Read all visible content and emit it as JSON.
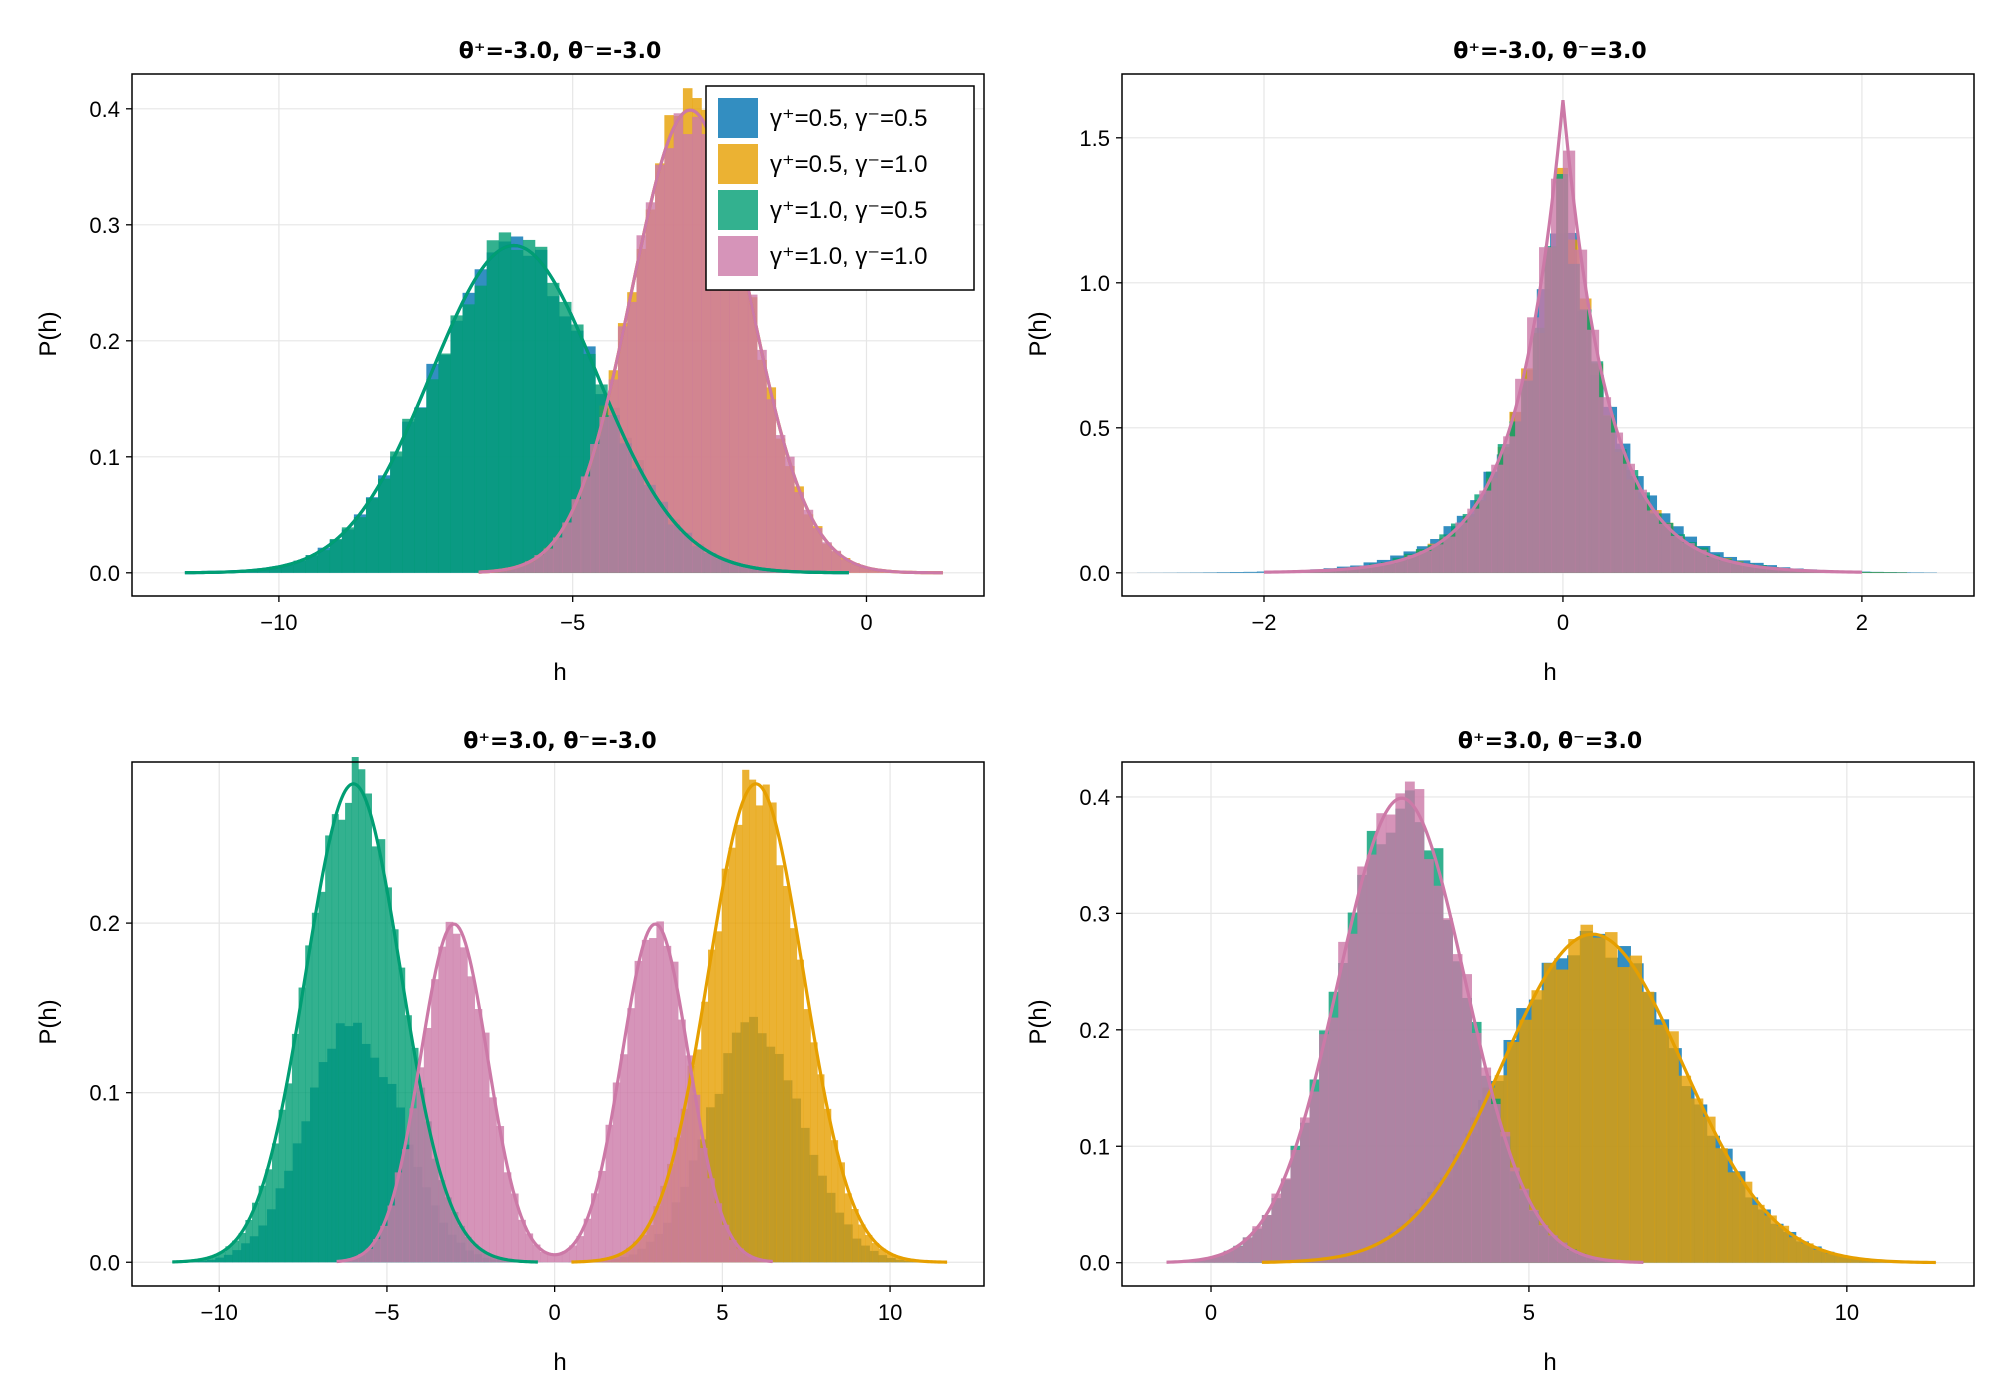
{
  "colors": {
    "gamma_05_05": "#0072B2",
    "gamma_05_10": "#E69F00",
    "gamma_10_05": "#009E73",
    "gamma_10_10": "#CC79A7",
    "grid": "#e6e6e6",
    "frame": "#000000"
  },
  "legend": {
    "placement": "top-right of first panel",
    "entries": [
      {
        "label": "γ⁺=0.5, γ⁻=0.5",
        "color_key": "gamma_05_05"
      },
      {
        "label": "γ⁺=0.5, γ⁻=1.0",
        "color_key": "gamma_05_10"
      },
      {
        "label": "γ⁺=1.0, γ⁻=0.5",
        "color_key": "gamma_10_05"
      },
      {
        "label": "γ⁺=1.0, γ⁻=1.0",
        "color_key": "gamma_10_10"
      }
    ]
  },
  "chart_data": [
    {
      "type": "histogram",
      "title": "θ⁺=-3.0, θ⁻=-3.0",
      "xlabel": "h",
      "ylabel": "P(h)",
      "xlim": [
        -12.5,
        2.0
      ],
      "ylim": [
        -0.02,
        0.43
      ],
      "xticks": [
        {
          "v": -10,
          "label": "−10"
        },
        {
          "v": -5,
          "label": "−5"
        },
        {
          "v": 0,
          "label": "0"
        }
      ],
      "yticks": [
        {
          "v": 0.0,
          "label": "0.0"
        },
        {
          "v": 0.1,
          "label": "0.1"
        },
        {
          "v": 0.2,
          "label": "0.2"
        },
        {
          "v": 0.3,
          "label": "0.3"
        },
        {
          "v": 0.4,
          "label": "0.4"
        }
      ],
      "grid": true,
      "series": [
        {
          "name": "γ⁺=0.5, γ⁻=0.5",
          "color_key": "gamma_05_05",
          "curve": "normal",
          "mean": -6.0,
          "sd": 1.414,
          "range": [
            -11.6,
            -0.3
          ],
          "bins": 55,
          "noise_seed": 11
        },
        {
          "name": "γ⁺=0.5, γ⁻=1.0",
          "color_key": "gamma_05_10",
          "curve": "normal",
          "mean": -3.0,
          "sd": 1.0,
          "range": [
            -6.6,
            1.3
          ],
          "bins": 50,
          "noise_seed": 12
        },
        {
          "name": "γ⁺=1.0, γ⁻=0.5",
          "color_key": "gamma_10_05",
          "curve": "normal",
          "mean": -6.0,
          "sd": 1.414,
          "range": [
            -11.6,
            -0.3
          ],
          "bins": 55,
          "noise_seed": 13
        },
        {
          "name": "γ⁺=1.0, γ⁻=1.0",
          "color_key": "gamma_10_10",
          "curve": "normal",
          "mean": -3.0,
          "sd": 1.0,
          "range": [
            -6.6,
            1.3
          ],
          "bins": 50,
          "noise_seed": 14
        }
      ]
    },
    {
      "type": "histogram",
      "title": "θ⁺=-3.0, θ⁻=3.0",
      "xlabel": "h",
      "ylabel": "P(h)",
      "xlim": [
        -2.95,
        2.75
      ],
      "ylim": [
        -0.08,
        1.72
      ],
      "xticks": [
        {
          "v": -2,
          "label": "−2"
        },
        {
          "v": 0,
          "label": "0"
        },
        {
          "v": 2,
          "label": "2"
        }
      ],
      "yticks": [
        {
          "v": 0.0,
          "label": "0.0"
        },
        {
          "v": 0.5,
          "label": "0.5"
        },
        {
          "v": 1.0,
          "label": "1.0"
        },
        {
          "v": 1.5,
          "label": "1.5"
        }
      ],
      "grid": true,
      "series": [
        {
          "name": "γ⁺=0.5, γ⁻=0.5",
          "color_key": "gamma_05_05",
          "curve": "none",
          "scale": 0.35,
          "peak": 1.35,
          "range": [
            -2.85,
            2.5
          ],
          "bins": 60,
          "noise_seed": 21
        },
        {
          "name": "γ⁺=0.5, γ⁻=1.0",
          "color_key": "gamma_05_10",
          "curve": "none",
          "scale": 0.32,
          "peak": 1.45,
          "range": [
            -2.0,
            2.3
          ],
          "bins": 55,
          "noise_seed": 22
        },
        {
          "name": "γ⁺=1.0, γ⁻=0.5",
          "color_key": "gamma_10_05",
          "curve": "none",
          "scale": 0.33,
          "peak": 1.4,
          "range": [
            -2.0,
            2.3
          ],
          "bins": 55,
          "noise_seed": 23
        },
        {
          "name": "γ⁺=1.0, γ⁻=1.0",
          "color_key": "gamma_10_10",
          "curve": "laplace",
          "scale": 0.3,
          "peak": 1.63,
          "range": [
            -2.0,
            2.0
          ],
          "bins": 50,
          "noise_seed": 24
        }
      ]
    },
    {
      "type": "histogram",
      "title": "θ⁺=3.0, θ⁻=-3.0",
      "xlabel": "h",
      "ylabel": "P(h)",
      "xlim": [
        -12.6,
        12.8
      ],
      "ylim": [
        -0.014,
        0.295
      ],
      "xticks": [
        {
          "v": -10,
          "label": "−10"
        },
        {
          "v": -5,
          "label": "−5"
        },
        {
          "v": 0,
          "label": "0"
        },
        {
          "v": 5,
          "label": "5"
        },
        {
          "v": 10,
          "label": "10"
        }
      ],
      "yticks": [
        {
          "v": 0.0,
          "label": "0.0"
        },
        {
          "v": 0.1,
          "label": "0.1"
        },
        {
          "v": 0.2,
          "label": "0.2"
        }
      ],
      "grid": true,
      "series": [
        {
          "name": "γ⁺=0.5, γ⁻=0.5",
          "color_key": "gamma_05_05",
          "curve": "none",
          "mixture": [
            {
              "mean": -6.0,
              "sd": 1.414,
              "w": 0.5
            },
            {
              "mean": 6.0,
              "sd": 1.414,
              "w": 0.5
            }
          ],
          "range": [
            -11.4,
            11.7
          ],
          "bins": 90,
          "noise_seed": 31
        },
        {
          "name": "γ⁺=0.5, γ⁻=1.0",
          "color_key": "gamma_05_10",
          "curve": "normal",
          "mean": 6.0,
          "sd": 1.414,
          "range": [
            0.5,
            11.7
          ],
          "bins": 55,
          "noise_seed": 32
        },
        {
          "name": "γ⁺=1.0, γ⁻=0.5",
          "color_key": "gamma_10_05",
          "curve": "normal",
          "mean": -6.0,
          "sd": 1.414,
          "range": [
            -11.4,
            -0.5
          ],
          "bins": 55,
          "noise_seed": 33
        },
        {
          "name": "γ⁺=1.0, γ⁻=1.0",
          "color_key": "gamma_10_10",
          "curve": "mixture",
          "mixture": [
            {
              "mean": -3.0,
              "sd": 1.0,
              "w": 0.5
            },
            {
              "mean": 3.0,
              "sd": 1.0,
              "w": 0.5
            }
          ],
          "range": [
            -6.5,
            6.5
          ],
          "bins": 60,
          "noise_seed": 34
        }
      ]
    },
    {
      "type": "histogram",
      "title": "θ⁺=3.0, θ⁻=3.0",
      "xlabel": "h",
      "ylabel": "P(h)",
      "xlim": [
        -1.4,
        12.0
      ],
      "ylim": [
        -0.02,
        0.43
      ],
      "xticks": [
        {
          "v": 0,
          "label": "0"
        },
        {
          "v": 5,
          "label": "5"
        },
        {
          "v": 10,
          "label": "10"
        }
      ],
      "yticks": [
        {
          "v": 0.0,
          "label": "0.0"
        },
        {
          "v": 0.1,
          "label": "0.1"
        },
        {
          "v": 0.2,
          "label": "0.2"
        },
        {
          "v": 0.3,
          "label": "0.3"
        },
        {
          "v": 0.4,
          "label": "0.4"
        }
      ],
      "grid": true,
      "series": [
        {
          "name": "γ⁺=0.5, γ⁻=0.5",
          "color_key": "gamma_05_05",
          "curve": "none",
          "mean": 6.0,
          "sd": 1.414,
          "range": [
            0.4,
            11.4
          ],
          "bins": 55,
          "noise_seed": 41
        },
        {
          "name": "γ⁺=0.5, γ⁻=1.0",
          "color_key": "gamma_05_10",
          "curve": "normal",
          "mean": 6.0,
          "sd": 1.414,
          "range": [
            0.8,
            11.4
          ],
          "bins": 55,
          "noise_seed": 42
        },
        {
          "name": "γ⁺=1.0, γ⁻=0.5",
          "color_key": "gamma_10_05",
          "curve": "none",
          "mean": 3.0,
          "sd": 1.0,
          "range": [
            -0.7,
            6.8
          ],
          "bins": 50,
          "noise_seed": 43
        },
        {
          "name": "γ⁺=1.0, γ⁻=1.0",
          "color_key": "gamma_10_10",
          "curve": "normal",
          "mean": 3.0,
          "sd": 1.0,
          "range": [
            -0.7,
            6.8
          ],
          "bins": 50,
          "noise_seed": 44
        }
      ]
    }
  ]
}
